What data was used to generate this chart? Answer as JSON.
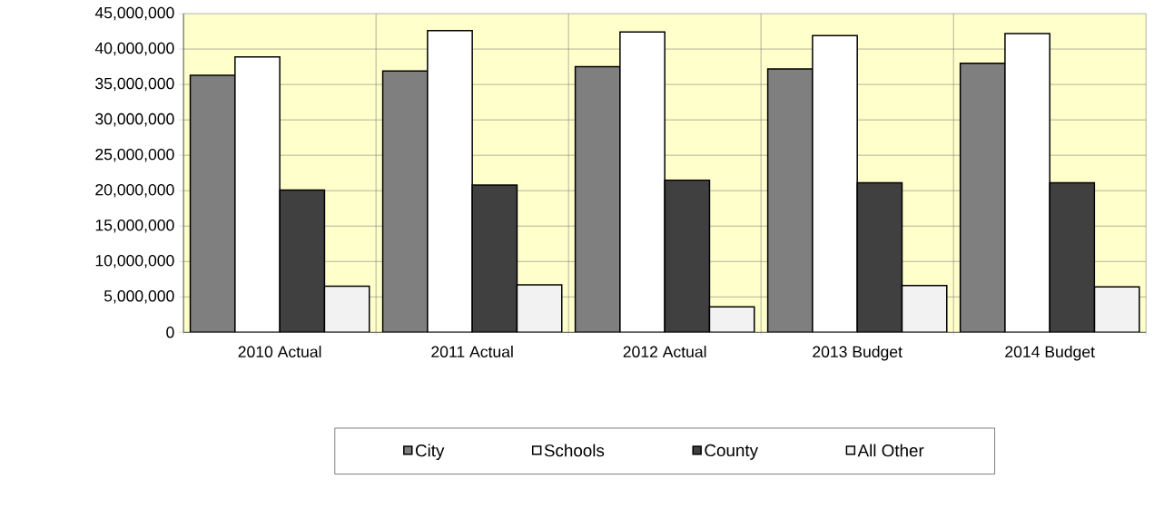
{
  "chart_data": {
    "type": "bar",
    "categories": [
      "2010 Actual",
      "2011 Actual",
      "2012 Actual",
      "2013 Budget",
      "2014 Budget"
    ],
    "series": [
      {
        "name": "City",
        "color": "#7f7f7f",
        "values": [
          36300000,
          36900000,
          37500000,
          37200000,
          38000000
        ]
      },
      {
        "name": "Schools",
        "color": "#ffffff",
        "values": [
          38900000,
          42600000,
          42400000,
          41900000,
          42200000
        ]
      },
      {
        "name": "County",
        "color": "#404040",
        "values": [
          20100000,
          20800000,
          21500000,
          21100000,
          21100000
        ]
      },
      {
        "name": "All Other",
        "color": "#f2f2f2",
        "values": [
          6500000,
          6700000,
          3600000,
          6600000,
          6400000
        ]
      }
    ],
    "ylim": [
      0,
      45000000
    ],
    "yticks": [
      {
        "value": 0,
        "label": "0"
      },
      {
        "value": 5000000,
        "label": "5,000,000"
      },
      {
        "value": 10000000,
        "label": "10,000,000"
      },
      {
        "value": 15000000,
        "label": "15,000,000"
      },
      {
        "value": 20000000,
        "label": "20,000,000"
      },
      {
        "value": 25000000,
        "label": "25,000,000"
      },
      {
        "value": 30000000,
        "label": "30,000,000"
      },
      {
        "value": 35000000,
        "label": "35,000,000"
      },
      {
        "value": 40000000,
        "label": "40,000,000"
      },
      {
        "value": 45000000,
        "label": "45,000,000"
      }
    ],
    "grid": true,
    "legend": "bottom"
  }
}
